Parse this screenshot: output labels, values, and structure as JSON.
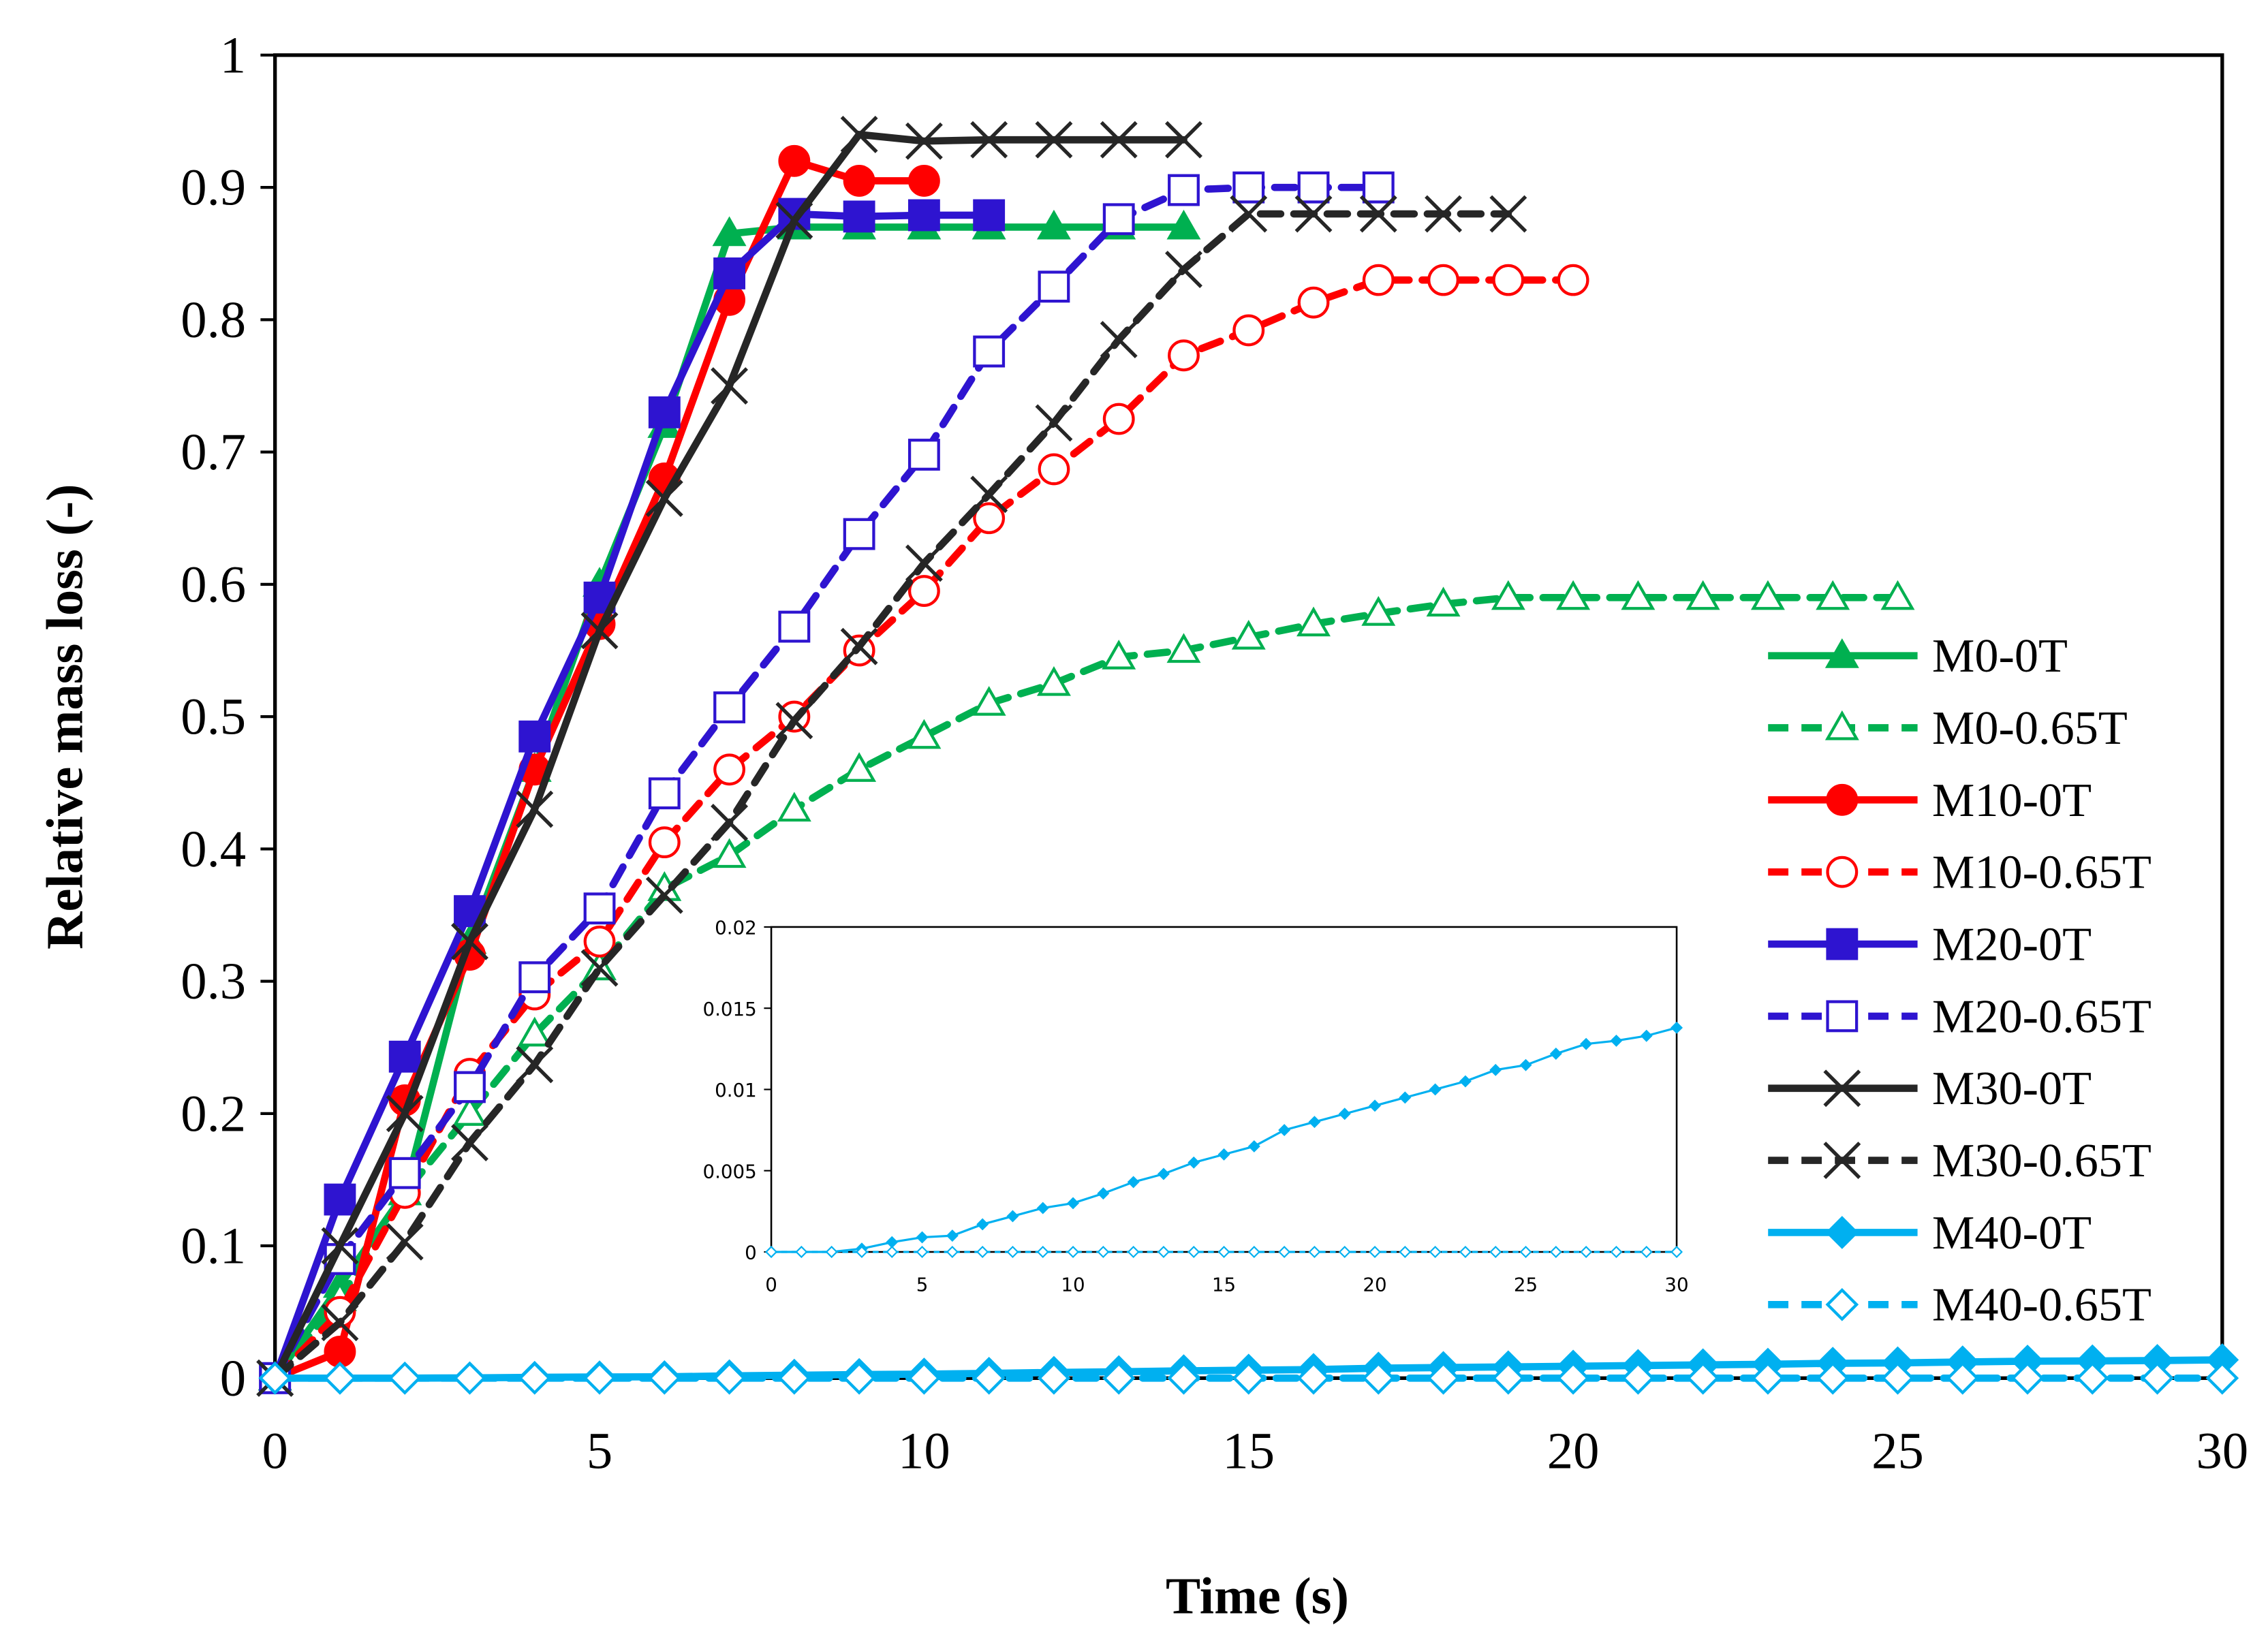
{
  "chart_data": {
    "type": "line",
    "xlabel": "Time (s)",
    "ylabel": "Relative mass loss (-)",
    "xlim": [
      0,
      30
    ],
    "ylim": [
      0,
      1
    ],
    "xticks": [
      "0",
      "5",
      "10",
      "15",
      "20",
      "25",
      "30"
    ],
    "yticks": [
      "0",
      "0.1",
      "0.2",
      "0.3",
      "0.4",
      "0.5",
      "0.6",
      "0.7",
      "0.8",
      "0.9",
      "1"
    ],
    "legend_position": "right",
    "series": [
      {
        "name": "M0-0T",
        "color": "#00b050",
        "dashed": false,
        "marker": "triangle",
        "filled": true,
        "values": [
          0,
          0.07,
          0.14,
          0.33,
          0.46,
          0.6,
          0.72,
          0.865,
          0.87,
          0.87,
          0.87,
          0.87,
          0.87,
          0.87,
          0.87
        ]
      },
      {
        "name": "M0-0.65T",
        "color": "#00b050",
        "dashed": true,
        "marker": "triangle",
        "filled": false,
        "values": [
          0,
          0.06,
          0.14,
          0.2,
          0.26,
          0.31,
          0.37,
          0.395,
          0.43,
          0.46,
          0.485,
          0.51,
          0.525,
          0.545,
          0.55,
          0.56,
          0.57,
          0.578,
          0.585,
          0.59,
          0.59,
          0.59,
          0.59,
          0.59,
          0.59,
          0.59
        ]
      },
      {
        "name": "M10-0T",
        "color": "#ff0000",
        "dashed": false,
        "marker": "circle",
        "filled": true,
        "values": [
          0,
          0.02,
          0.21,
          0.32,
          0.46,
          0.57,
          0.68,
          0.815,
          0.92,
          0.905,
          0.905
        ]
      },
      {
        "name": "M10-0.65T",
        "color": "#ff0000",
        "dashed": true,
        "marker": "circle",
        "filled": false,
        "values": [
          0,
          0.05,
          0.14,
          0.23,
          0.29,
          0.33,
          0.405,
          0.46,
          0.5,
          0.55,
          0.595,
          0.65,
          0.687,
          0.725,
          0.773,
          0.792,
          0.813,
          0.83,
          0.83,
          0.83,
          0.83
        ]
      },
      {
        "name": "M20-0T",
        "color": "#2e14d0",
        "dashed": false,
        "marker": "square",
        "filled": true,
        "values": [
          0,
          0.135,
          0.243,
          0.353,
          0.485,
          0.59,
          0.73,
          0.835,
          0.88,
          0.878,
          0.879,
          0.879
        ]
      },
      {
        "name": "M20-0.65T",
        "color": "#2e14d0",
        "dashed": true,
        "marker": "square",
        "filled": false,
        "values": [
          0,
          0.09,
          0.155,
          0.22,
          0.303,
          0.355,
          0.442,
          0.507,
          0.568,
          0.638,
          0.698,
          0.776,
          0.825,
          0.876,
          0.898,
          0.9,
          0.9,
          0.9
        ]
      },
      {
        "name": "M30-0T",
        "color": "#262626",
        "dashed": false,
        "marker": "x",
        "filled": false,
        "values": [
          0,
          0.1,
          0.2,
          0.33,
          0.43,
          0.565,
          0.665,
          0.75,
          0.875,
          0.94,
          0.935,
          0.936,
          0.936,
          0.936,
          0.936
        ]
      },
      {
        "name": "M30-0.65T",
        "color": "#262626",
        "dashed": true,
        "marker": "x",
        "filled": false,
        "values": [
          0,
          0.042,
          0.103,
          0.178,
          0.237,
          0.31,
          0.365,
          0.42,
          0.497,
          0.553,
          0.616,
          0.668,
          0.722,
          0.785,
          0.838,
          0.88,
          0.88,
          0.88,
          0.88,
          0.88
        ]
      },
      {
        "name": "M40-0T",
        "color": "#00b0f0",
        "dashed": false,
        "marker": "diamond",
        "filled": true,
        "values": [
          0,
          0,
          0,
          0.0002,
          0.0006,
          0.0009,
          0.001,
          0.0017,
          0.0022,
          0.0027,
          0.003,
          0.0036,
          0.0043,
          0.0048,
          0.0055,
          0.006,
          0.0065,
          0.0075,
          0.008,
          0.0085,
          0.009,
          0.0095,
          0.01,
          0.0105,
          0.0112,
          0.0115,
          0.0122,
          0.0128,
          0.013,
          0.0133,
          0.0138
        ]
      },
      {
        "name": "M40-0.65T",
        "color": "#00b0f0",
        "dashed": true,
        "marker": "diamond",
        "filled": false,
        "values": [
          0,
          0,
          0,
          0,
          0,
          0,
          0,
          0,
          0,
          0,
          0,
          0,
          0,
          0,
          0,
          0,
          0,
          0,
          0,
          0,
          0,
          0,
          0,
          0,
          0,
          0,
          0,
          0,
          0,
          0,
          0
        ]
      }
    ],
    "inset": {
      "xlim": [
        0,
        30
      ],
      "ylim": [
        0,
        0.02
      ],
      "xticks": [
        "0",
        "5",
        "10",
        "15",
        "20",
        "25",
        "30"
      ],
      "yticks": [
        "0",
        "0.005",
        "0.01",
        "0.015",
        "0.02"
      ],
      "series": [
        "M40-0T",
        "M40-0.65T"
      ]
    }
  }
}
